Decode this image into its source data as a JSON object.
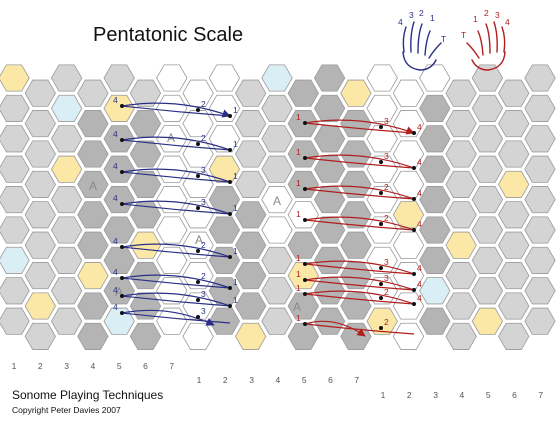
{
  "title": "Pentatonic Scale",
  "footer": {
    "line1": "Sonome Playing Techniques",
    "line2": "Copyright  Peter Davies 2007"
  },
  "left_hand_legend": [
    "4",
    "3",
    "2",
    "1",
    "T"
  ],
  "right_hand_legend": [
    "T",
    "1",
    "2",
    "3",
    "4"
  ],
  "column_numbers": {
    "bottom_left": [
      "1",
      "2",
      "3",
      "4",
      "5",
      "6",
      "7"
    ],
    "bottom_middle": [
      "1",
      "2",
      "3",
      "4",
      "5",
      "6",
      "7"
    ],
    "bottom_right": [
      "1",
      "2",
      "3",
      "4",
      "5",
      "6",
      "7"
    ]
  },
  "a_marker": "A",
  "colors": {
    "grey": "#d4d4d4",
    "dark_grey": "#b4b4b4",
    "white": "#ffffff",
    "yellow": "#fbe7a6",
    "blue": "#daeef6",
    "outline": "#9a9a9a",
    "left_hand": "#2a2f86",
    "right_hand": "#b01e1e"
  },
  "left_fingering": {
    "color": "#2a2f86",
    "rows": [
      [
        "4",
        "2",
        "1"
      ],
      [
        "4",
        "2",
        "1"
      ],
      [
        "4",
        "3",
        "1"
      ],
      [
        "4",
        "3",
        "1"
      ],
      [
        "4",
        "2",
        "1"
      ],
      [
        "4",
        "2",
        "1"
      ],
      [
        "4",
        "3",
        "1"
      ],
      [
        "4",
        "3"
      ]
    ]
  },
  "right_fingering": {
    "color": "#b01e1e",
    "rows": [
      [
        "1",
        "3",
        "4"
      ],
      [
        "1",
        "3",
        "4"
      ],
      [
        "1",
        "2",
        "4"
      ],
      [
        "1",
        "2",
        "4"
      ],
      [
        "1",
        "3",
        "4"
      ],
      [
        "1",
        "3",
        "4"
      ],
      [
        "1",
        "2",
        "4"
      ],
      [
        "1",
        "2"
      ]
    ]
  }
}
